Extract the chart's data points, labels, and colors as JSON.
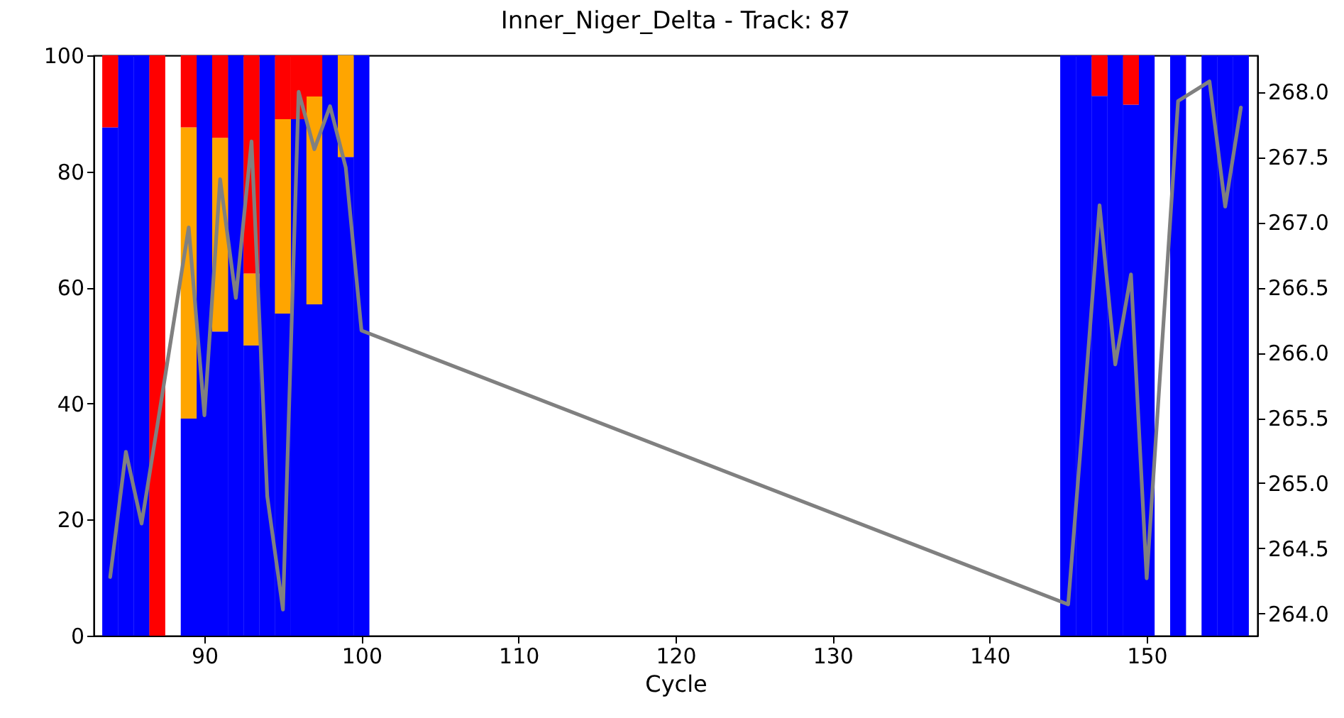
{
  "chart_data": {
    "type": "bar",
    "title": "Inner_Niger_Delta - Track: 87",
    "xlabel": "Cycle",
    "stacked": true,
    "x": [
      84,
      85,
      86,
      87,
      89,
      90,
      91,
      92,
      93,
      94,
      95,
      96,
      97,
      98,
      99,
      100,
      145,
      146,
      147,
      148,
      149,
      150,
      152,
      154,
      155,
      156
    ],
    "series": [
      {
        "color": "#0000ff",
        "values": [
          87.6,
          100,
          100,
          null,
          37.4,
          100,
          52.4,
          100,
          50,
          100,
          55.5,
          89,
          57.1,
          100,
          82.5,
          100,
          100,
          100,
          93,
          100,
          91.5,
          100,
          100,
          100,
          100,
          100
        ]
      },
      {
        "color": "#ffa500",
        "values": [
          null,
          null,
          null,
          null,
          50.2,
          null,
          33.4,
          null,
          12.4,
          null,
          33.5,
          null,
          35.8,
          null,
          17.5,
          null,
          null,
          null,
          null,
          null,
          null,
          null,
          null,
          null,
          null,
          null
        ]
      },
      {
        "color": "#ff0000",
        "values": [
          12.4,
          null,
          null,
          100,
          12.4,
          null,
          14.2,
          null,
          37.6,
          null,
          11,
          11,
          7.1,
          null,
          null,
          null,
          null,
          null,
          7,
          null,
          8.5,
          null,
          null,
          null,
          null,
          null
        ]
      },
      {
        "type": "line",
        "axis": "y2",
        "color": "#808080",
        "x": [
          84,
          85,
          86,
          87,
          89,
          90,
          91,
          92,
          93,
          94,
          95,
          96,
          97,
          98,
          99,
          100,
          145,
          146,
          147,
          148,
          149,
          150,
          152,
          154,
          155,
          156
        ],
        "values": [
          264.28,
          265.24,
          264.69,
          265.44,
          266.96,
          265.52,
          267.33,
          266.42,
          267.62,
          264.9,
          264.03,
          268.0,
          267.56,
          267.89,
          267.42,
          266.17,
          264.07,
          265.58,
          267.13,
          265.91,
          266.6,
          264.27,
          267.93,
          268.08,
          267.12,
          267.88
        ]
      }
    ],
    "xlim": [
      83.4,
      156.6
    ],
    "xticks": [
      90,
      100,
      110,
      120,
      130,
      140,
      150
    ],
    "ylim": [
      0,
      100
    ],
    "yticks": [
      0,
      20,
      40,
      60,
      80,
      100
    ],
    "y2lim": [
      263.83,
      268.28
    ],
    "y2ticks": [
      {
        "value": 264,
        "label": "264.0"
      },
      264.5,
      {
        "value": 265,
        "label": "265.0"
      },
      265.5,
      {
        "value": 266,
        "label": "266.0"
      },
      266.5,
      {
        "value": 267,
        "label": "267.0"
      },
      267.5,
      {
        "value": 268,
        "label": "268.0"
      }
    ],
    "grid": false,
    "legend": false,
    "line_style": "solid",
    "marker": "none"
  }
}
